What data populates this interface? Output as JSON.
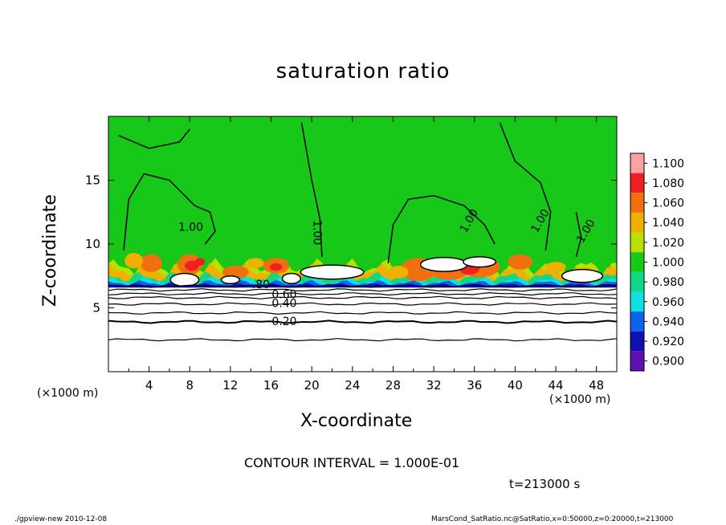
{
  "chart_data": {
    "type": "heatmap",
    "title": "saturation ratio",
    "xlabel": "X-coordinate",
    "ylabel": "Z-coordinate",
    "x_unit": "(×1000 m)",
    "z_unit": "(×1000 m)",
    "xlim": [
      0,
      50
    ],
    "ylim": [
      0,
      20
    ],
    "x_ticks": [
      4,
      8,
      12,
      16,
      20,
      24,
      28,
      32,
      36,
      40,
      44,
      48
    ],
    "y_ticks": [
      5,
      10,
      15
    ],
    "colorbar": {
      "levels": [
        "1.100",
        "1.080",
        "1.060",
        "1.040",
        "1.020",
        "1.000",
        "0.980",
        "0.960",
        "0.940",
        "0.920",
        "0.900"
      ],
      "colors": [
        "#fca0a0",
        "#f02020",
        "#f07010",
        "#f0b000",
        "#b8e000",
        "#18c818",
        "#10d888",
        "#10e0e0",
        "#1060f0",
        "#1010b0",
        "#6010b0"
      ]
    },
    "contour_labels": [
      {
        "text": "0.20",
        "x": 17.3,
        "z": 3.9
      },
      {
        "text": "0.40",
        "x": 17.3,
        "z": 5.3
      },
      {
        "text": "0.60",
        "x": 17.3,
        "z": 6.0
      },
      {
        "text": ".80",
        "x": 15.0,
        "z": 6.8
      },
      {
        "text": "1.00",
        "x": 8.1,
        "z": 11.3
      },
      {
        "text": "1.00",
        "x": 20.5,
        "z": 10.9
      },
      {
        "text": "1.00",
        "x": 35.5,
        "z": 11.8
      },
      {
        "text": "1.00",
        "x": 42.5,
        "z": 11.8
      },
      {
        "text": "1.00",
        "x": 47.0,
        "z": 11.0
      }
    ],
    "contour_levels_z": [
      2.5,
      3.9,
      4.6,
      5.3,
      5.8,
      6.1,
      6.4,
      6.7
    ]
  },
  "contour_interval": "CONTOUR INTERVAL = 1.000E-01",
  "time_label": "t=213000 s",
  "footer_left": "./gpview-new  2010-12-08",
  "footer_right": "MarsCond_SatRatio.nc@SatRatio,x=0:50000,z=0:20000,t=213000"
}
